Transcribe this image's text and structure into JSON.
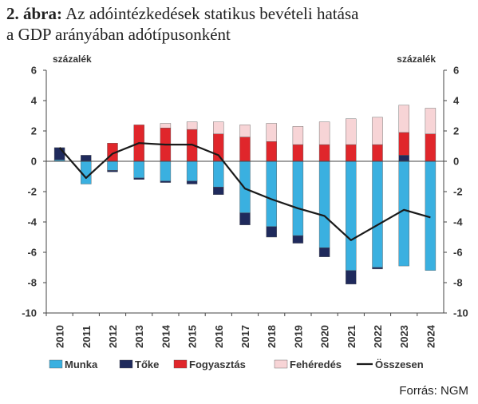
{
  "title_prefix": "2. ábra:",
  "title_line1": "Az adóintézkedések statikus bevételi hatása",
  "title_line2": "a GDP arányában adótípusonként",
  "source": "Forrás: NGM",
  "colors": {
    "munka": "#3ab0e0",
    "toke": "#1f2a5c",
    "fogyasztas": "#e0262b",
    "feheredes": "#f7d4d6",
    "osszesen": "#1a1a1a"
  },
  "chart_data": {
    "type": "bar",
    "stacked": true,
    "categories": [
      "2010",
      "2011",
      "2012",
      "2013",
      "2014",
      "2015",
      "2016",
      "2017",
      "2018",
      "2019",
      "2020",
      "2021",
      "2022",
      "2023",
      "2024"
    ],
    "ylabel_left": "százalék",
    "ylabel_right": "százalék",
    "ylim": [
      -10,
      6
    ],
    "yticks": [
      6,
      4,
      2,
      0,
      -2,
      -4,
      -6,
      -8,
      -10
    ],
    "grid": false,
    "legend": "bottom",
    "series": [
      {
        "name": "Munka",
        "key": "munka",
        "kind": "bar",
        "values": [
          0.1,
          -1.5,
          -0.6,
          -1.1,
          -1.3,
          -1.3,
          -1.7,
          -3.4,
          -4.3,
          -4.9,
          -5.7,
          -7.2,
          -7.0,
          -6.9,
          -7.2
        ]
      },
      {
        "name": "Tőke",
        "key": "toke",
        "kind": "bar",
        "values": [
          0.8,
          0.4,
          -0.1,
          -0.1,
          -0.1,
          -0.2,
          -0.5,
          -0.8,
          -0.7,
          -0.5,
          -0.6,
          -0.9,
          -0.1,
          0.4,
          0.0
        ]
      },
      {
        "name": "Fogyasztás",
        "key": "fogyasztas",
        "kind": "bar",
        "values": [
          0.0,
          0.0,
          1.2,
          2.4,
          2.2,
          2.1,
          1.8,
          1.6,
          1.3,
          1.1,
          1.1,
          1.1,
          1.1,
          1.5,
          1.8
        ]
      },
      {
        "name": "Fehéredés",
        "key": "feheredes",
        "kind": "bar",
        "values": [
          0.0,
          0.0,
          0.0,
          0.0,
          0.3,
          0.5,
          0.8,
          0.8,
          1.2,
          1.2,
          1.5,
          1.7,
          1.8,
          1.8,
          1.7
        ]
      },
      {
        "name": "Összesen",
        "key": "osszesen",
        "kind": "line",
        "values": [
          0.9,
          -1.1,
          0.5,
          1.2,
          1.1,
          1.1,
          0.4,
          -1.8,
          -2.5,
          -3.1,
          -3.6,
          -5.2,
          -4.2,
          -3.2,
          -3.7
        ]
      }
    ]
  }
}
